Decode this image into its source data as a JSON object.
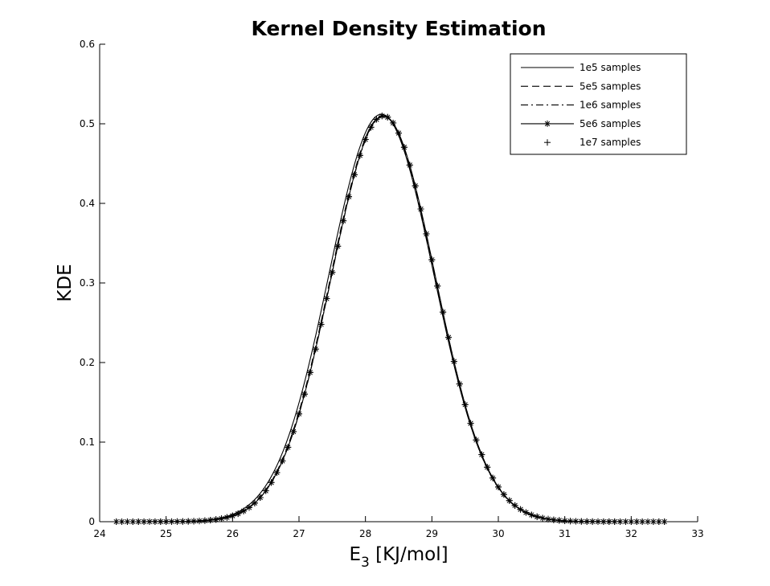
{
  "chart_data": {
    "type": "line",
    "title": "Kernel Density Estimation",
    "xlabel": "E",
    "xlabel_sub": "3",
    "xlabel_unit": " [KJ/mol]",
    "ylabel": "KDE",
    "xlim": [
      24,
      33
    ],
    "ylim": [
      0,
      0.6
    ],
    "xticks": [
      "24",
      "25",
      "26",
      "27",
      "28",
      "29",
      "30",
      "31",
      "32",
      "33"
    ],
    "yticks": [
      "0",
      "0.1",
      "0.2",
      "0.3",
      "0.4",
      "0.5",
      "0.6"
    ],
    "grid": false,
    "legend_position": "top-right",
    "series": [
      {
        "name": "1e5 samples",
        "style": "solid",
        "marker": "none",
        "mean": 28.24,
        "sd": 0.79,
        "peak": 0.512,
        "x_range": [
          24.25,
          32.5
        ]
      },
      {
        "name": "5e5 samples",
        "style": "dashed",
        "marker": "none",
        "mean": 28.26,
        "sd": 0.78,
        "peak": 0.51,
        "x_range": [
          24.25,
          32.5
        ]
      },
      {
        "name": "1e6 samples",
        "style": "dashdot",
        "marker": "none",
        "mean": 28.27,
        "sd": 0.78,
        "peak": 0.509,
        "x_range": [
          24.25,
          32.5
        ]
      },
      {
        "name": "5e6 samples",
        "style": "solid",
        "marker": "asterisk",
        "mean": 28.27,
        "sd": 0.78,
        "peak": 0.51,
        "x_range": [
          24.25,
          32.5
        ],
        "marker_count": 100
      },
      {
        "name": "1e7 samples",
        "style": "none",
        "marker": "plus",
        "mean": 28.27,
        "sd": 0.78,
        "peak": 0.51,
        "x_range": [
          24.25,
          32.5
        ],
        "marker_count": 100
      }
    ]
  }
}
